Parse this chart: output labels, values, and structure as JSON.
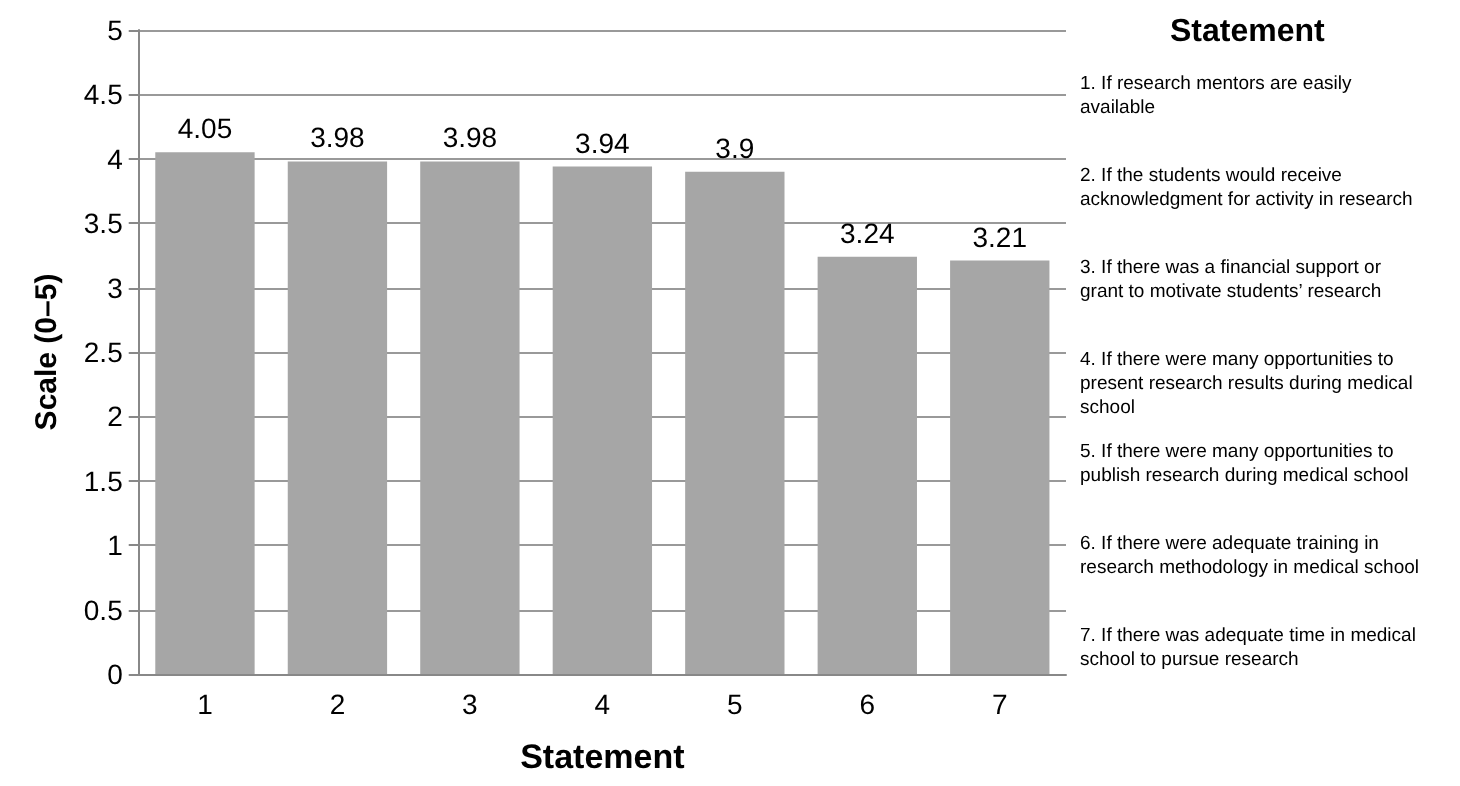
{
  "chart_data": {
    "type": "bar",
    "xlabel": "Statement",
    "ylabel": "Scale (0–5)",
    "legend_title": "Statement",
    "categories": [
      "1",
      "2",
      "3",
      "4",
      "5",
      "6",
      "7"
    ],
    "values": [
      4.05,
      3.98,
      3.98,
      3.94,
      3.9,
      3.24,
      3.21
    ],
    "color": "#a6a6a6",
    "ylim": [
      0,
      5
    ],
    "yticks": [
      0,
      0.5,
      1,
      1.5,
      2,
      2.5,
      3,
      3.5,
      4,
      4.5,
      5
    ],
    "grid": "y",
    "data_labels": true,
    "annotations": [
      "1. If research mentors are easily available",
      "2. If the students would receive acknowledgment for activity in research",
      "3. If there was a financial support or grant to motivate students’ research",
      "4. If there were many opportunities to present research results during medical school",
      "5. If there were many opportunities to publish research during medical school",
      "6. If there were adequate training in research methodology in medical school",
      "7. If there was adequate time in medical school to pursue research"
    ]
  }
}
